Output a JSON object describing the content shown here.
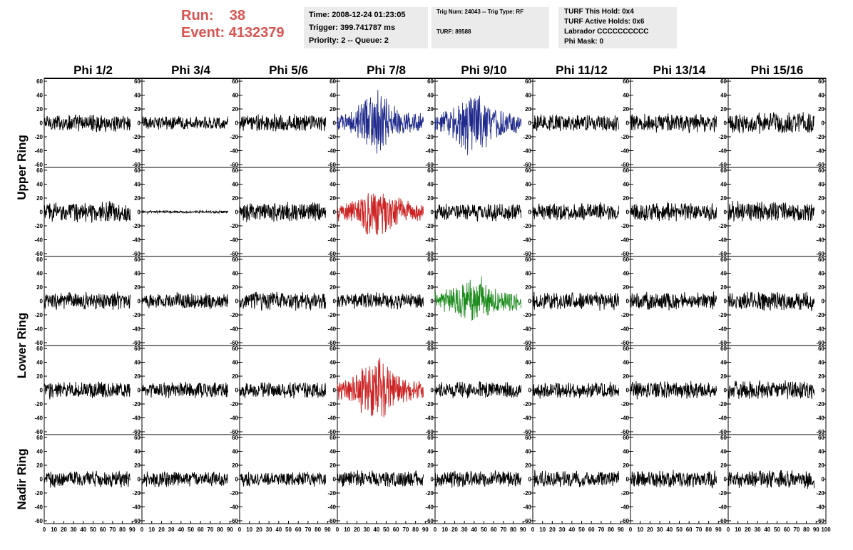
{
  "header": {
    "run_label": "Run:",
    "run_value": "38",
    "event_label": "Event:",
    "event_value": "4132379",
    "run_color": "#d9534f",
    "time": "Time: 2008-12-24 01:23:05",
    "trigger": "Trigger: 399.741787 ms",
    "priority": "Priority: 2 -- Queue: 2",
    "trig_num": "Trig Num: 24043 -- Trig Type: RF",
    "turf": "TURF: 89588",
    "turf_this_hold": "TURF This Hold: 0x4",
    "turf_active_holds": "TURF Active Holds: 0x6",
    "labrador": "Labrador CCCCCCCCCC",
    "phi_mask": "Phi Mask: 0"
  },
  "chart_data": {
    "type": "line",
    "columns": [
      "Phi 1/2",
      "Phi 3/4",
      "Phi 5/6",
      "Phi 7/8",
      "Phi 9/10",
      "Phi 11/12",
      "Phi 13/14",
      "Phi 15/16"
    ],
    "ring_labels": [
      {
        "label": "Upper Ring",
        "spans_rows": [
          0,
          1
        ]
      },
      {
        "label": "Lower Ring",
        "spans_rows": [
          2,
          3
        ]
      },
      {
        "label": "Nadir Ring",
        "spans_rows": [
          4
        ]
      }
    ],
    "rows": 5,
    "xlim": [
      0,
      100
    ],
    "ylim": [
      -60,
      60
    ],
    "x_tick_labels": [
      "0",
      "10",
      "20",
      "30",
      "40",
      "50",
      "60",
      "70",
      "80",
      "90",
      "100"
    ],
    "y_tick_labels": [
      "60",
      "40",
      "20",
      "0",
      "-20",
      "-40",
      "-60"
    ],
    "default_color": "#000000",
    "highlights": [
      {
        "row": 0,
        "col": 3,
        "color": "#1f2a8c"
      },
      {
        "row": 0,
        "col": 4,
        "color": "#1f2a8c"
      },
      {
        "row": 1,
        "col": 3,
        "color": "#cc2222"
      },
      {
        "row": 2,
        "col": 4,
        "color": "#1e8c1e"
      },
      {
        "row": 3,
        "col": 3,
        "color": "#cc2222"
      }
    ],
    "amplitudes": [
      [
        14,
        11,
        14,
        16,
        18,
        14,
        15,
        17
      ],
      [
        16,
        2,
        16,
        18,
        14,
        14,
        15,
        17
      ],
      [
        14,
        13,
        15,
        13,
        16,
        14,
        14,
        15
      ],
      [
        14,
        13,
        13,
        17,
        13,
        13,
        14,
        15
      ],
      [
        13,
        12,
        11,
        13,
        13,
        14,
        14,
        15
      ]
    ],
    "pulse_peaks": [
      {
        "row": 0,
        "col": 3,
        "peak": 50
      },
      {
        "row": 0,
        "col": 4,
        "peak": 55
      },
      {
        "row": 1,
        "col": 3,
        "peak": 45
      },
      {
        "row": 2,
        "col": 4,
        "peak": 40
      },
      {
        "row": 3,
        "col": 3,
        "peak": 55
      }
    ]
  }
}
